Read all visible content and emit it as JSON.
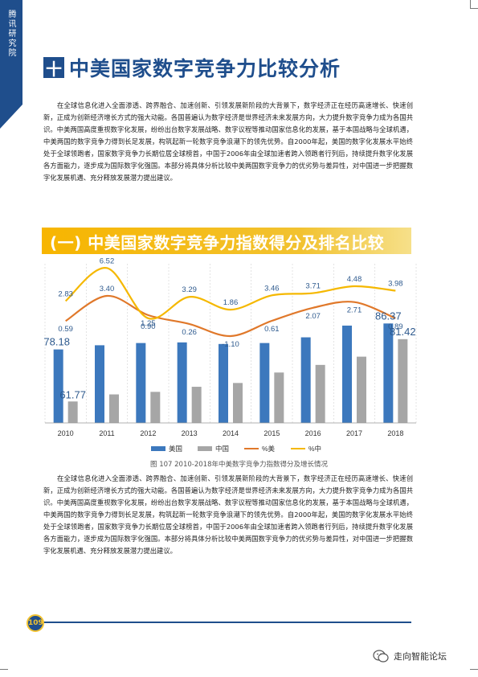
{
  "sidebar": {
    "label": "腾讯研究院"
  },
  "section": {
    "icon": "十",
    "title": "中美国家数字竞争力比较分析"
  },
  "paragraph1": "在全球信息化进入全面渗透、跨界融合、加速创新、引领发展新阶段的大背景下，数字经济正在经历高速增长、快速创新，正成为创新经济增长方式的强大动能。各国普遍认为数字经济是世界经济未来发展方向，大力提升数字竞争力成为各国共识。中美两国高度重视数字化发展，纷纷出台数字发展战略、数字议程等推动国家信息化的发展，基于本国战略与全球机遇，中美两国的数字竞争力得到长足发展，构筑起新一轮数字竞争浪潮下的领先优势。自2000年起，美国的数字化发展水平始终处于全球领跑者，国家数字竞争力长期位居全球榜首，中国于2006年由全球加速者跨入领跑者行列后，持续提升数字化发展各方面能力，逐步成为国际数字化强国。本部分将具体分析比较中美两国数字竞争力的优劣势与差异性，对中国进一步把握数字化发展机遇、充分释放发展潜力提出建议。",
  "subsection": {
    "title": "(一) 中美国家数字竞争力指数得分及排名比较"
  },
  "chart_data": {
    "type": "bar",
    "categories": [
      "2010",
      "2011",
      "2012",
      "2013",
      "2014",
      "2015",
      "2016",
      "2017",
      "2018"
    ],
    "series": [
      {
        "name": "美国",
        "type": "bar",
        "color": "#3c78bd",
        "values": [
          78.18,
          79.5,
          80.2,
          80.4,
          79.9,
          80.2,
          82.0,
          85.7,
          86.37
        ]
      },
      {
        "name": "中国",
        "type": "bar",
        "color": "#a6a6a6",
        "values": [
          61.77,
          64.0,
          64.8,
          66.4,
          67.6,
          70.9,
          73.3,
          75.9,
          81.42
        ]
      },
      {
        "name": "%美",
        "type": "line",
        "color": "#e0782a",
        "values": [
          0.59,
          3.4,
          1.25,
          0.26,
          -1.1,
          0.61,
          2.07,
          2.71,
          0.89
        ]
      },
      {
        "name": "%中",
        "type": "line",
        "color": "#f5b800",
        "values": [
          2.83,
          6.52,
          0.9,
          3.29,
          1.86,
          3.46,
          3.71,
          4.48,
          3.98
        ]
      }
    ],
    "bar_labels": [
      {
        "series": "美国",
        "category": "2010",
        "text": "78.18"
      },
      {
        "series": "中国",
        "category": "2010",
        "text": "61.77"
      },
      {
        "series": "美国",
        "category": "2018",
        "text": "86.37"
      },
      {
        "series": "中国",
        "category": "2018",
        "text": "81.42"
      }
    ],
    "ylim_bars": [
      55,
      90
    ],
    "ylim_lines": [
      -2,
      7
    ],
    "legend": "bottom"
  },
  "caption": "图 107  2010-2018年中美数字竞争力指数得分及增长情况",
  "paragraph2": "在全球信息化进入全面渗透、跨界融合、加速创新、引领发展新阶段的大背景下，数字经济正在经历高速增长、快速创新，正成为创新经济增长方式的强大动能。各国普遍认为数字经济是世界经济未来发展方向，大力提升数字竞争力成为各国共识。中美两国高度重视数字化发展，纷纷出台数字发展战略、数字议程等推动国家信息化的发展，基于本国战略与全球机遇，中美两国的数字竞争力得到长足发展，构筑起新一轮数字竞争浪潮下的领先优势。自2000年起，美国的数字化发展水平始终处于全球领跑者，国家数字竞争力长期位居全球榜首，中国于2006年由全球加速者跨入领跑者行列后，持续提升数字化发展各方面能力，逐步成为国际数字化强国。本部分将具体分析比较中美两国数字竞争力的优劣势与差异性，对中国进一步把握数字化发展机遇、充分释放发展潜力提出建议。",
  "footer": {
    "page_number": "109",
    "watermark": "走向智能论坛"
  }
}
